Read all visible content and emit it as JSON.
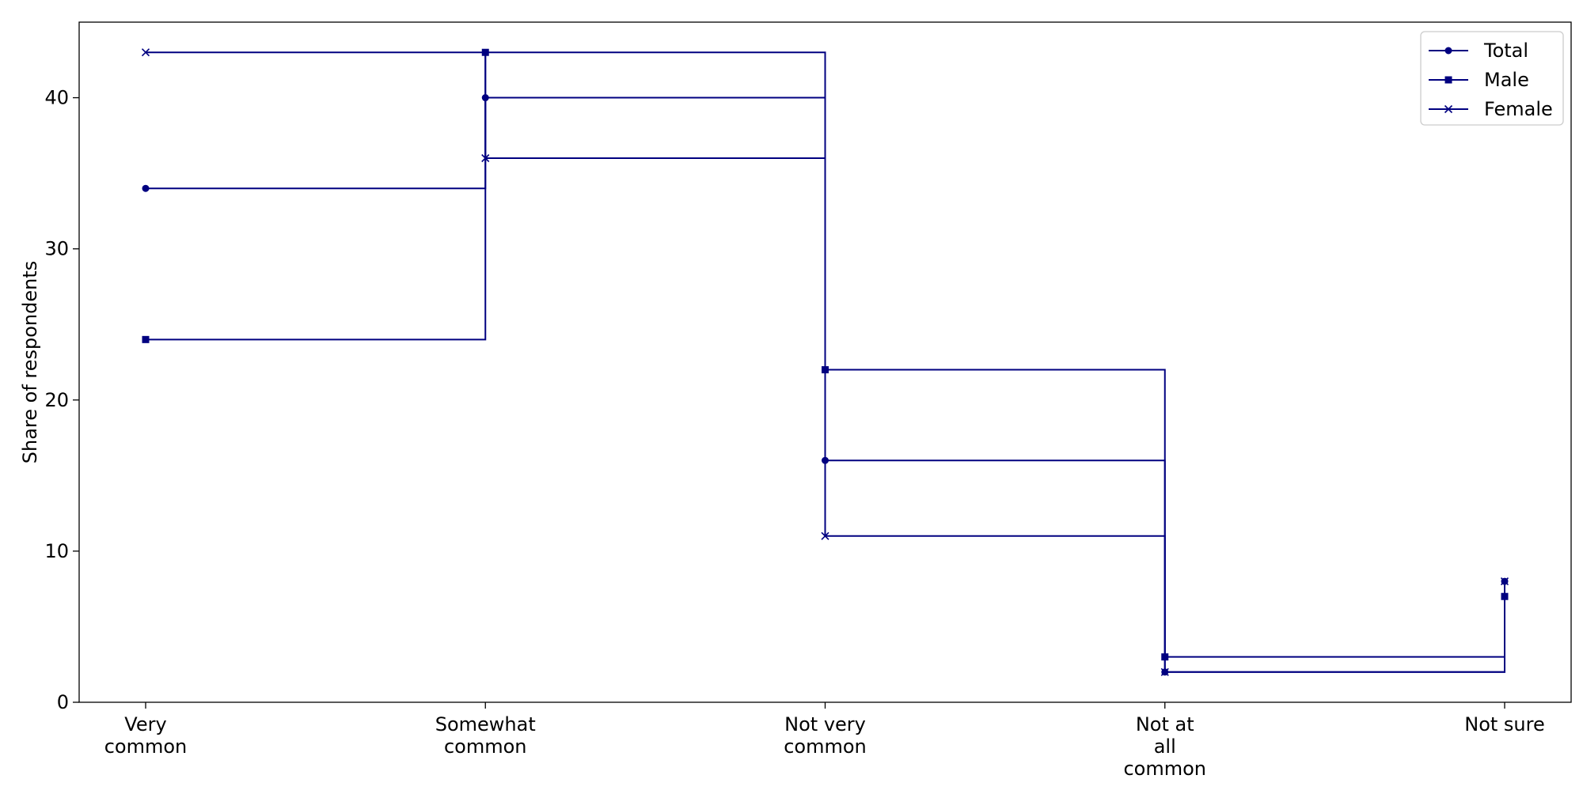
{
  "chart_data": {
    "type": "line",
    "step": "post",
    "title": "",
    "xlabel": "",
    "ylabel": "Share of respondents",
    "categories": [
      [
        "Very",
        "common"
      ],
      [
        "Somewhat",
        "common"
      ],
      [
        "Not very",
        "common"
      ],
      [
        "Not at",
        "all",
        "common"
      ],
      [
        "Not sure"
      ]
    ],
    "ylim": [
      0,
      45
    ],
    "yticks": [
      0,
      10,
      20,
      30,
      40
    ],
    "grid": false,
    "legend_position": "top-right",
    "line_color": "#000080",
    "series": [
      {
        "name": "Total",
        "marker": "circle",
        "values": [
          34,
          40,
          16,
          2,
          8
        ]
      },
      {
        "name": "Male",
        "marker": "square",
        "values": [
          24,
          43,
          22,
          3,
          7
        ]
      },
      {
        "name": "Female",
        "marker": "x",
        "values": [
          43,
          36,
          11,
          2,
          8
        ]
      }
    ]
  }
}
